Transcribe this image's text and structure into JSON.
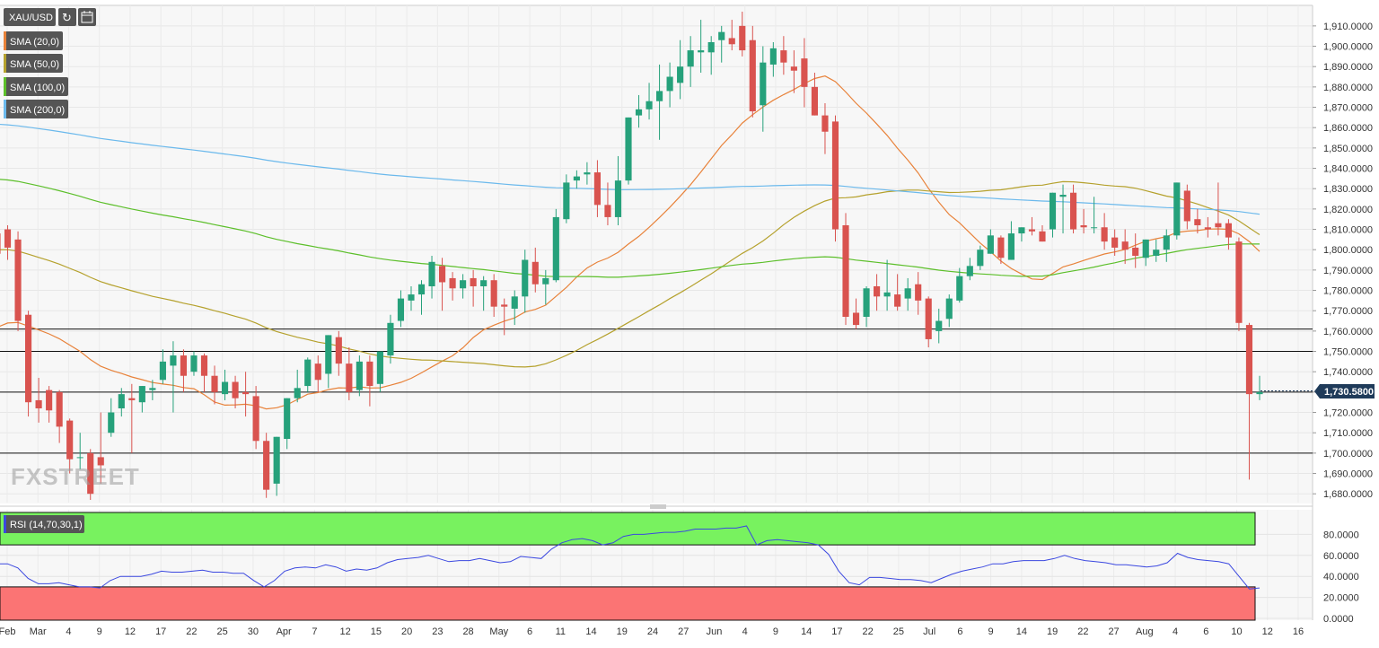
{
  "chart_data": {
    "type": "candlestick",
    "symbol": "XAU/USD",
    "last_price": "1,730.5800",
    "watermark": "FXSTREET",
    "price_axis": {
      "ylim": [
        1677,
        1917
      ],
      "ticks": [
        "1,910.0000",
        "1,900.0000",
        "1,890.0000",
        "1,880.0000",
        "1,870.0000",
        "1,860.0000",
        "1,850.0000",
        "1,840.0000",
        "1,830.0000",
        "1,820.0000",
        "1,810.0000",
        "1,800.0000",
        "1,790.0000",
        "1,780.0000",
        "1,770.0000",
        "1,760.0000",
        "1,750.0000",
        "1,740.0000",
        "1,730.0000",
        "1,720.0000",
        "1,710.0000",
        "1,700.0000",
        "1,690.0000",
        "1,680.0000"
      ]
    },
    "x_ticks": [
      "Feb",
      "Mar",
      "4",
      "9",
      "12",
      "17",
      "22",
      "25",
      "30",
      "Apr",
      "7",
      "12",
      "15",
      "20",
      "23",
      "28",
      "May",
      "6",
      "11",
      "14",
      "19",
      "24",
      "27",
      "Jun",
      "4",
      "9",
      "14",
      "17",
      "22",
      "25",
      "Jul",
      "6",
      "9",
      "14",
      "19",
      "22",
      "27",
      "Aug",
      "4",
      "6",
      "10",
      "12",
      "16"
    ],
    "horizontal_levels": [
      1761,
      1750,
      1730,
      1700
    ],
    "indicators": [
      "SMA (20,0)",
      "SMA (50,0)",
      "SMA (100,0)",
      "SMA (200,0)"
    ],
    "indicator_colors": [
      "#e8823a",
      "#b5a12d",
      "#5cbf2a",
      "#6bb9ec"
    ],
    "candles": [
      [
        1808,
        1810,
        1798,
        1790
      ],
      [
        1810,
        1812,
        1801,
        1795
      ],
      [
        1805,
        1809,
        1765,
        1760
      ],
      [
        1768,
        1770,
        1725,
        1718
      ],
      [
        1726,
        1737,
        1722,
        1715
      ],
      [
        1731,
        1733,
        1721,
        1715
      ],
      [
        1730,
        1731,
        1713,
        1705
      ],
      [
        1716,
        1717,
        1697,
        1690
      ],
      [
        1698,
        1710,
        1698,
        1692
      ],
      [
        1700,
        1702,
        1680,
        1677
      ],
      [
        1698,
        1720,
        1694,
        1685
      ],
      [
        1710,
        1727,
        1720,
        1708
      ],
      [
        1722,
        1732,
        1729,
        1718
      ],
      [
        1727,
        1734,
        1726,
        1700
      ],
      [
        1725,
        1733,
        1733,
        1720
      ],
      [
        1731,
        1736,
        1732,
        1726
      ],
      [
        1736,
        1751,
        1745,
        1734
      ],
      [
        1743,
        1755,
        1748,
        1720
      ],
      [
        1748,
        1751,
        1738,
        1730
      ],
      [
        1740,
        1750,
        1748,
        1738
      ],
      [
        1748,
        1749,
        1738,
        1730
      ],
      [
        1738,
        1743,
        1730,
        1724
      ],
      [
        1729,
        1741,
        1735,
        1726
      ],
      [
        1735,
        1738,
        1727,
        1722
      ],
      [
        1730,
        1740,
        1729,
        1718
      ],
      [
        1728,
        1733,
        1706,
        1702
      ],
      [
        1706,
        1710,
        1682,
        1678
      ],
      [
        1685,
        1708,
        1708,
        1679
      ],
      [
        1707,
        1726,
        1727,
        1702
      ],
      [
        1727,
        1741,
        1732,
        1725
      ],
      [
        1733,
        1747,
        1746,
        1730
      ],
      [
        1744,
        1748,
        1736,
        1730
      ],
      [
        1739,
        1757,
        1758,
        1732
      ],
      [
        1757,
        1760,
        1744,
        1738
      ],
      [
        1744,
        1752,
        1730,
        1726
      ],
      [
        1731,
        1748,
        1745,
        1728
      ],
      [
        1745,
        1748,
        1733,
        1723
      ],
      [
        1734,
        1749,
        1750,
        1730
      ],
      [
        1748,
        1768,
        1764,
        1744
      ],
      [
        1765,
        1780,
        1776,
        1762
      ],
      [
        1775,
        1782,
        1778,
        1770
      ],
      [
        1778,
        1785,
        1783,
        1768
      ],
      [
        1782,
        1797,
        1794,
        1776
      ],
      [
        1792,
        1796,
        1784,
        1770
      ],
      [
        1786,
        1789,
        1781,
        1775
      ],
      [
        1781,
        1788,
        1785,
        1776
      ],
      [
        1786,
        1790,
        1782,
        1772
      ],
      [
        1782,
        1787,
        1785,
        1770
      ],
      [
        1785,
        1788,
        1772,
        1767
      ],
      [
        1773,
        1776,
        1772,
        1758
      ],
      [
        1771,
        1780,
        1777,
        1763
      ],
      [
        1777,
        1800,
        1795,
        1769
      ],
      [
        1794,
        1801,
        1783,
        1779
      ],
      [
        1783,
        1790,
        1786,
        1773
      ],
      [
        1785,
        1820,
        1816,
        1784
      ],
      [
        1815,
        1837,
        1833,
        1813
      ],
      [
        1834,
        1839,
        1836,
        1830
      ],
      [
        1837,
        1843,
        1838,
        1832
      ],
      [
        1838,
        1844,
        1822,
        1816
      ],
      [
        1822,
        1833,
        1816,
        1812
      ],
      [
        1816,
        1846,
        1834,
        1812
      ],
      [
        1834,
        1863,
        1865,
        1832
      ],
      [
        1866,
        1876,
        1869,
        1860
      ],
      [
        1869,
        1882,
        1873,
        1864
      ],
      [
        1873,
        1891,
        1878,
        1854
      ],
      [
        1878,
        1892,
        1885,
        1870
      ],
      [
        1882,
        1903,
        1890,
        1874
      ],
      [
        1890,
        1905,
        1898,
        1880
      ],
      [
        1897,
        1913,
        1898,
        1887
      ],
      [
        1897,
        1905,
        1902,
        1886
      ],
      [
        1903,
        1910,
        1907,
        1892
      ],
      [
        1904,
        1913,
        1901,
        1898
      ],
      [
        1910,
        1917,
        1898,
        1895
      ],
      [
        1903,
        1910,
        1868,
        1865
      ],
      [
        1871,
        1900,
        1892,
        1858
      ],
      [
        1891,
        1902,
        1899,
        1885
      ],
      [
        1898,
        1905,
        1892,
        1886
      ],
      [
        1890,
        1898,
        1888,
        1877
      ],
      [
        1894,
        1904,
        1880,
        1870
      ],
      [
        1880,
        1887,
        1866,
        1868
      ],
      [
        1866,
        1872,
        1858,
        1847
      ],
      [
        1863,
        1866,
        1810,
        1804
      ],
      [
        1812,
        1818,
        1767,
        1763
      ],
      [
        1769,
        1776,
        1763,
        1761
      ],
      [
        1767,
        1782,
        1781,
        1762
      ],
      [
        1782,
        1788,
        1777,
        1770
      ],
      [
        1777,
        1795,
        1779,
        1770
      ],
      [
        1778,
        1788,
        1772,
        1770
      ],
      [
        1776,
        1786,
        1781,
        1770
      ],
      [
        1783,
        1789,
        1775,
        1768
      ],
      [
        1776,
        1777,
        1756,
        1752
      ],
      [
        1760,
        1771,
        1765,
        1754
      ],
      [
        1766,
        1778,
        1776,
        1762
      ],
      [
        1775,
        1791,
        1787,
        1774
      ],
      [
        1787,
        1796,
        1792,
        1785
      ],
      [
        1792,
        1802,
        1800,
        1790
      ],
      [
        1798,
        1810,
        1807,
        1798
      ],
      [
        1806,
        1807,
        1796,
        1793
      ],
      [
        1795,
        1814,
        1808,
        1796
      ],
      [
        1808,
        1810,
        1811,
        1804
      ],
      [
        1810,
        1816,
        1809,
        1807
      ],
      [
        1809,
        1812,
        1804,
        1806
      ],
      [
        1810,
        1820,
        1828,
        1806
      ],
      [
        1826,
        1832,
        1827,
        1808
      ],
      [
        1828,
        1832,
        1810,
        1808
      ],
      [
        1812,
        1820,
        1811,
        1808
      ],
      [
        1811,
        1826,
        1811,
        1808
      ],
      [
        1811,
        1818,
        1804,
        1800
      ],
      [
        1806,
        1810,
        1801,
        1797
      ],
      [
        1804,
        1810,
        1800,
        1793
      ],
      [
        1801,
        1808,
        1797,
        1791
      ],
      [
        1796,
        1800,
        1805,
        1792
      ],
      [
        1797,
        1805,
        1800,
        1794
      ],
      [
        1800,
        1810,
        1807,
        1794
      ],
      [
        1807,
        1830,
        1833,
        1805
      ],
      [
        1829,
        1832,
        1814,
        1810
      ],
      [
        1815,
        1820,
        1812,
        1808
      ],
      [
        1811,
        1816,
        1810,
        1806
      ],
      [
        1813,
        1833,
        1811,
        1807
      ],
      [
        1813,
        1815,
        1806,
        1800
      ],
      [
        1804,
        1806,
        1764,
        1760
      ],
      [
        1763,
        1764,
        1729,
        1687
      ],
      [
        1729,
        1738,
        1730,
        1726
      ]
    ],
    "rsi": {
      "label": "RSI (14,70,30,1)",
      "ylim": [
        0,
        100
      ],
      "overbought": 70,
      "oversold": 30,
      "ticks": [
        "80.0000",
        "60.0000",
        "40.0000",
        "20.0000",
        "0.0000"
      ],
      "values": [
        52,
        52,
        48,
        38,
        33,
        33,
        34,
        32,
        30,
        30,
        29,
        36,
        40,
        40,
        40,
        42,
        45,
        44,
        44,
        45,
        46,
        44,
        44,
        43,
        43,
        36,
        30,
        36,
        45,
        48,
        49,
        48,
        51,
        49,
        45,
        47,
        46,
        48,
        53,
        56,
        57,
        58,
        60,
        57,
        54,
        55,
        55,
        57,
        55,
        53,
        54,
        59,
        58,
        57,
        66,
        72,
        75,
        76,
        74,
        70,
        72,
        78,
        80,
        80,
        81,
        82,
        82,
        83,
        85,
        85,
        85,
        86,
        86,
        88,
        70,
        74,
        75,
        74,
        73,
        72,
        70,
        61,
        45,
        34,
        32,
        39,
        39,
        38,
        37,
        37,
        36,
        34,
        38,
        42,
        45,
        47,
        49,
        52,
        52,
        54,
        55,
        55,
        55,
        57,
        60,
        57,
        55,
        54,
        53,
        51,
        51,
        50,
        49,
        50,
        53,
        62,
        58,
        56,
        55,
        54,
        52,
        40,
        28,
        29
      ]
    }
  }
}
